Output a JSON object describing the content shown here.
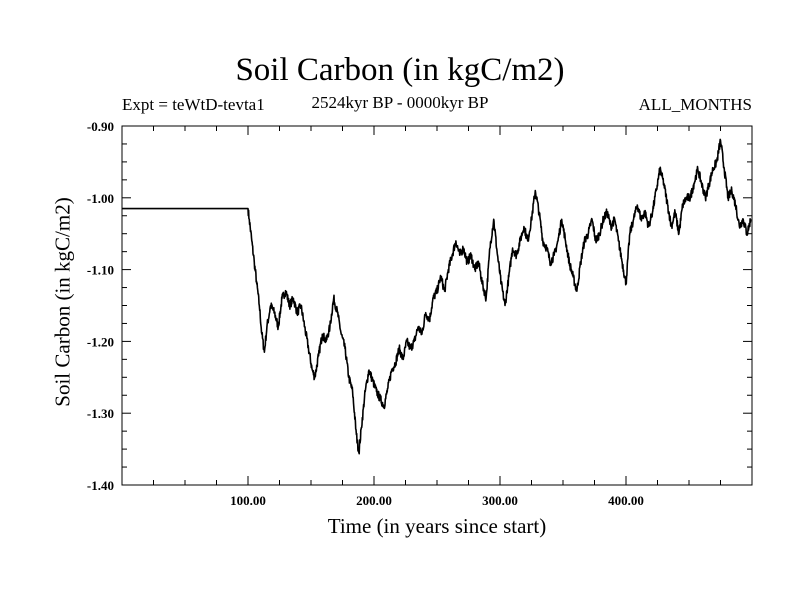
{
  "chart_data": {
    "type": "line",
    "title": "Soil Carbon (in kgC/m2)",
    "subtitle_left": "Expt = teWtD-tevta1",
    "subtitle_center": "2524kyr BP - 0000kyr BP",
    "subtitle_right": "ALL_MONTHS",
    "xlabel": "Time (in years since start)",
    "ylabel": "Soil Carbon (in kgC/m2)",
    "xlim": [
      0,
      500
    ],
    "ylim": [
      -1.4,
      -0.9
    ],
    "x_ticks": [
      100,
      200,
      300,
      400
    ],
    "x_tick_labels": [
      "100.00",
      "200.00",
      "300.00",
      "400.00"
    ],
    "y_ticks": [
      -1.4,
      -1.3,
      -1.2,
      -1.1,
      -1.0,
      -0.9
    ],
    "y_tick_labels": [
      "-1.40",
      "-1.30",
      "-1.20",
      "-1.10",
      "-1.00",
      "-0.90"
    ],
    "grid": false,
    "series": [
      {
        "name": "Soil Carbon",
        "color": "#000000",
        "x": [
          0,
          100,
          101,
          103,
          105,
          107,
          109,
          111,
          113,
          115,
          118,
          121,
          124,
          127,
          130,
          133,
          136,
          139,
          142,
          145,
          148,
          151,
          153,
          156,
          159,
          162,
          165,
          168,
          171,
          174,
          177,
          180,
          183,
          186,
          188,
          190,
          193,
          196,
          199,
          202,
          205,
          208,
          211,
          214,
          217,
          220,
          223,
          226,
          229,
          232,
          235,
          238,
          241,
          244,
          247,
          250,
          253,
          256,
          259,
          262,
          265,
          268,
          271,
          274,
          277,
          280,
          283,
          286,
          289,
          292,
          295,
          298,
          301,
          304,
          307,
          310,
          313,
          316,
          319,
          322,
          325,
          328,
          331,
          334,
          337,
          340,
          343,
          346,
          349,
          352,
          355,
          358,
          361,
          364,
          367,
          370,
          373,
          376,
          379,
          382,
          385,
          388,
          391,
          394,
          397,
          400,
          403,
          406,
          409,
          412,
          415,
          418,
          421,
          424,
          427,
          430,
          433,
          436,
          439,
          442,
          445,
          448,
          451,
          454,
          457,
          460,
          463,
          466,
          469,
          472,
          475,
          478,
          481,
          484,
          487,
          490,
          493,
          496,
          499
        ],
        "values": [
          -1.015,
          -1.015,
          -1.03,
          -1.06,
          -1.09,
          -1.12,
          -1.15,
          -1.19,
          -1.215,
          -1.18,
          -1.15,
          -1.16,
          -1.18,
          -1.14,
          -1.13,
          -1.15,
          -1.14,
          -1.16,
          -1.15,
          -1.18,
          -1.21,
          -1.24,
          -1.25,
          -1.22,
          -1.19,
          -1.2,
          -1.18,
          -1.14,
          -1.16,
          -1.19,
          -1.21,
          -1.25,
          -1.27,
          -1.33,
          -1.355,
          -1.32,
          -1.27,
          -1.24,
          -1.255,
          -1.27,
          -1.28,
          -1.29,
          -1.265,
          -1.24,
          -1.23,
          -1.21,
          -1.225,
          -1.2,
          -1.21,
          -1.2,
          -1.18,
          -1.19,
          -1.16,
          -1.17,
          -1.14,
          -1.13,
          -1.11,
          -1.13,
          -1.1,
          -1.08,
          -1.06,
          -1.08,
          -1.07,
          -1.09,
          -1.08,
          -1.1,
          -1.09,
          -1.12,
          -1.14,
          -1.07,
          -1.03,
          -1.08,
          -1.12,
          -1.15,
          -1.11,
          -1.07,
          -1.08,
          -1.06,
          -1.04,
          -1.06,
          -1.03,
          -0.99,
          -1.02,
          -1.06,
          -1.07,
          -1.09,
          -1.08,
          -1.06,
          -1.03,
          -1.06,
          -1.09,
          -1.11,
          -1.13,
          -1.09,
          -1.06,
          -1.05,
          -1.03,
          -1.06,
          -1.05,
          -1.03,
          -1.02,
          -1.04,
          -1.03,
          -1.06,
          -1.09,
          -1.12,
          -1.05,
          -1.03,
          -1.01,
          -1.03,
          -1.02,
          -1.04,
          -1.02,
          -0.99,
          -0.96,
          -0.98,
          -1.01,
          -1.04,
          -1.02,
          -1.05,
          -1.01,
          -1.0,
          -1.0,
          -0.98,
          -0.96,
          -0.98,
          -1.0,
          -0.98,
          -0.96,
          -0.95,
          -0.92,
          -0.96,
          -1.0,
          -0.99,
          -1.01,
          -1.04,
          -1.03,
          -1.05,
          -1.03
        ]
      }
    ]
  }
}
